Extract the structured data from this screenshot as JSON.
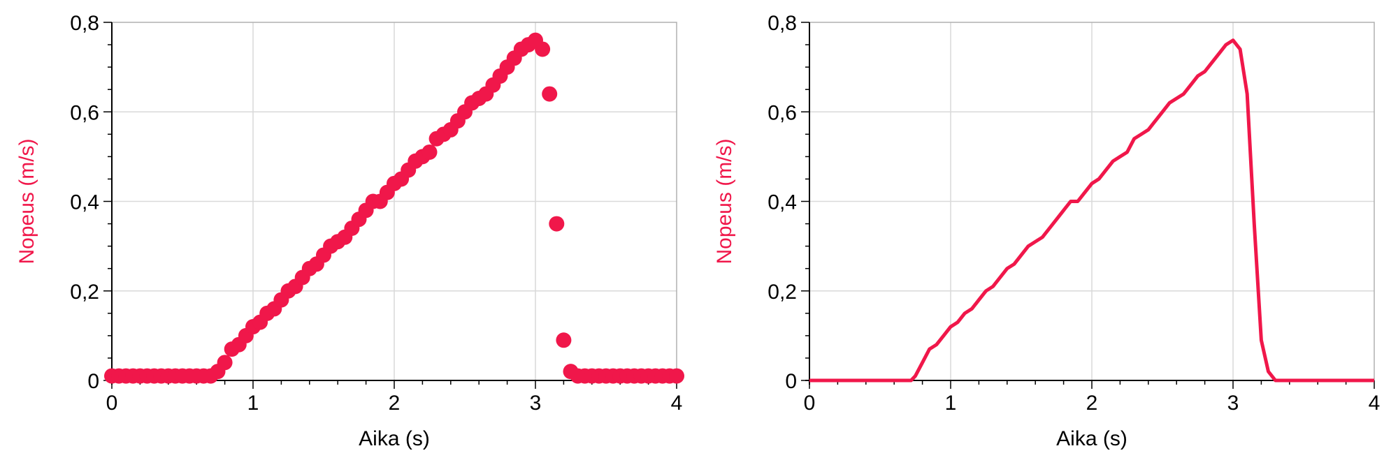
{
  "chart_data": [
    {
      "type": "scatter",
      "xlabel": "Aika (s)",
      "ylabel": "Nopeus (m/s)",
      "xlim": [
        0,
        4
      ],
      "ylim": [
        0,
        0.8
      ],
      "xticks": [
        "0",
        "1",
        "2",
        "3",
        "4"
      ],
      "yticks": [
        "0",
        "0,2",
        "0,4",
        "0,6",
        "0,8"
      ],
      "grid": true,
      "series": [
        {
          "color": "#f0174a",
          "x": [
            0,
            0.05,
            0.1,
            0.15,
            0.2,
            0.25,
            0.3,
            0.35,
            0.4,
            0.45,
            0.5,
            0.55,
            0.6,
            0.65,
            0.7,
            0.75,
            0.8,
            0.85,
            0.9,
            0.95,
            1,
            1.05,
            1.1,
            1.15,
            1.2,
            1.25,
            1.3,
            1.35,
            1.4,
            1.45,
            1.5,
            1.55,
            1.6,
            1.65,
            1.7,
            1.75,
            1.8,
            1.85,
            1.9,
            1.95,
            2,
            2.05,
            2.1,
            2.15,
            2.2,
            2.25,
            2.3,
            2.35,
            2.4,
            2.45,
            2.5,
            2.55,
            2.6,
            2.65,
            2.7,
            2.75,
            2.8,
            2.85,
            2.9,
            2.95,
            3,
            3.05,
            3.1,
            3.15,
            3.2,
            3.25,
            3.3,
            3.35,
            3.4,
            3.45,
            3.5,
            3.55,
            3.6,
            3.65,
            3.7,
            3.75,
            3.8,
            3.85,
            3.9,
            3.95,
            4
          ],
          "y": [
            0.01,
            0.01,
            0.01,
            0.01,
            0.01,
            0.01,
            0.01,
            0.01,
            0.01,
            0.01,
            0.01,
            0.01,
            0.01,
            0.01,
            0.01,
            0.02,
            0.04,
            0.07,
            0.08,
            0.1,
            0.12,
            0.13,
            0.15,
            0.16,
            0.18,
            0.2,
            0.21,
            0.23,
            0.25,
            0.26,
            0.28,
            0.3,
            0.31,
            0.32,
            0.34,
            0.36,
            0.38,
            0.4,
            0.4,
            0.42,
            0.44,
            0.45,
            0.47,
            0.49,
            0.5,
            0.51,
            0.54,
            0.55,
            0.56,
            0.58,
            0.6,
            0.62,
            0.63,
            0.64,
            0.66,
            0.68,
            0.7,
            0.72,
            0.74,
            0.75,
            0.76,
            0.74,
            0.64,
            0.35,
            0.09,
            0.02,
            0.01,
            0.01,
            0.01,
            0.01,
            0.01,
            0.01,
            0.01,
            0.01,
            0.01,
            0.01,
            0.01,
            0.01,
            0.01,
            0.01,
            0.01
          ]
        }
      ]
    },
    {
      "type": "line",
      "xlabel": "Aika (s)",
      "ylabel": "Nopeus (m/s)",
      "xlim": [
        0,
        4
      ],
      "ylim": [
        0,
        0.8
      ],
      "xticks": [
        "0",
        "1",
        "2",
        "3",
        "4"
      ],
      "yticks": [
        "0",
        "0,2",
        "0,4",
        "0,6",
        "0,8"
      ],
      "grid": true,
      "series": [
        {
          "color": "#f0174a",
          "x": [
            0,
            0.1,
            0.2,
            0.3,
            0.4,
            0.5,
            0.6,
            0.7,
            0.72,
            0.75,
            0.8,
            0.85,
            0.9,
            0.95,
            1,
            1.05,
            1.1,
            1.15,
            1.2,
            1.25,
            1.3,
            1.35,
            1.4,
            1.45,
            1.5,
            1.55,
            1.6,
            1.65,
            1.7,
            1.75,
            1.8,
            1.85,
            1.9,
            1.95,
            2,
            2.05,
            2.1,
            2.15,
            2.2,
            2.25,
            2.3,
            2.35,
            2.4,
            2.45,
            2.5,
            2.55,
            2.6,
            2.65,
            2.7,
            2.75,
            2.8,
            2.85,
            2.9,
            2.95,
            3,
            3.05,
            3.1,
            3.15,
            3.2,
            3.25,
            3.3,
            3.35,
            3.4,
            3.5,
            3.6,
            3.7,
            3.8,
            3.9,
            4
          ],
          "y": [
            0,
            0,
            0,
            0,
            0,
            0,
            0,
            0,
            0,
            0.01,
            0.04,
            0.07,
            0.08,
            0.1,
            0.12,
            0.13,
            0.15,
            0.16,
            0.18,
            0.2,
            0.21,
            0.23,
            0.25,
            0.26,
            0.28,
            0.3,
            0.31,
            0.32,
            0.34,
            0.36,
            0.38,
            0.4,
            0.4,
            0.42,
            0.44,
            0.45,
            0.47,
            0.49,
            0.5,
            0.51,
            0.54,
            0.55,
            0.56,
            0.58,
            0.6,
            0.62,
            0.63,
            0.64,
            0.66,
            0.68,
            0.69,
            0.71,
            0.73,
            0.75,
            0.76,
            0.74,
            0.64,
            0.35,
            0.09,
            0.02,
            0,
            0,
            0,
            0,
            0,
            0,
            0,
            0,
            0
          ]
        }
      ]
    }
  ]
}
